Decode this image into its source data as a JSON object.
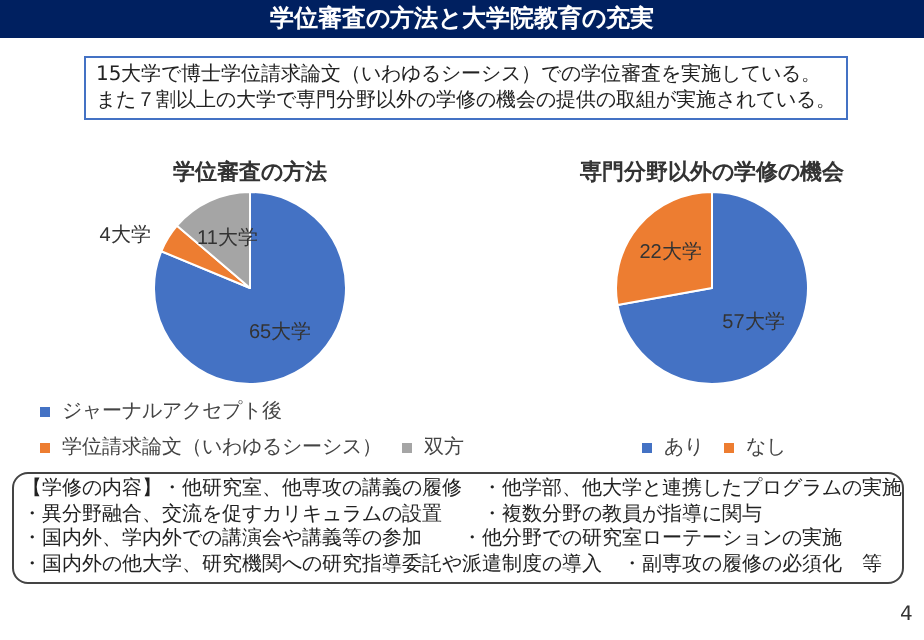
{
  "chart_data": [
    {
      "type": "other",
      "title": "学位審査の方法と大学院教育の充実",
      "annotations": [
        "15大学で博士学位請求論文（いわゆるシーシス）での学位審査を実施している。",
        "また７割以上の大学で専門分野以外の学修の機会の提供の取組が実施されている。",
        "4"
      ]
    },
    {
      "type": "pie",
      "title": "学位審査の方法",
      "categories": [
        "ジャーナルアクセプト後",
        "学位請求論文（いわゆるシーシス）",
        "双方"
      ],
      "values": [
        65,
        4,
        11
      ],
      "colors": [
        "#4472c4",
        "#ed7d31",
        "#a5a5a5"
      ],
      "value_labels": [
        "65大学",
        "4大学",
        "11大学"
      ],
      "legend": "bottom"
    },
    {
      "type": "pie",
      "title": "専門分野以外の学修の機会",
      "categories": [
        "あり",
        "なし"
      ],
      "values": [
        57,
        22
      ],
      "colors": [
        "#4472c4",
        "#ed7d31"
      ],
      "value_labels": [
        "57大学",
        "22大学"
      ],
      "legend": "bottom",
      "annotations": [
        "【学修の内容】・他研究室、他専攻の講義の履修　・他学部、他大学と連携したプログラムの実施",
        "・異分野融合、交流を促すカリキュラムの設置　　・複数分野の教員が指導に関与",
        "・国内外、学内外での講演会や講義等の参加　　・他分野での研究室ローテーションの実施",
        "・国内外の他大学、研究機関への研究指導委託や派遣制度の導入　・副専攻の履修の必須化　等"
      ]
    }
  ]
}
